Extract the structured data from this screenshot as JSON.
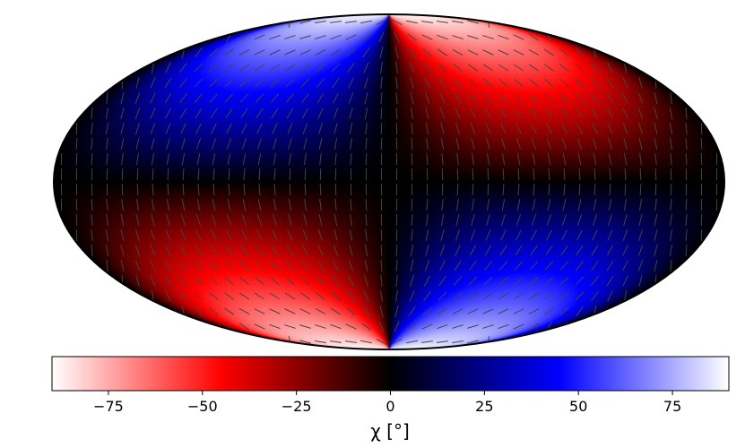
{
  "colorbar": {
    "min": -90,
    "max": 90,
    "ticks": [
      "−75",
      "−50",
      "−25",
      "0",
      "25",
      "50",
      "75"
    ],
    "tick_values": [
      -75,
      -50,
      -25,
      0,
      25,
      50,
      75
    ],
    "label": "χ [°]",
    "colors": {
      "neg_end": "#ffffff",
      "neg_mid": "#ff0000",
      "zero": "#000000",
      "pos_mid": "#0000ff",
      "pos_end": "#ffffff"
    }
  },
  "map": {
    "projection": "mollweide",
    "quantity": "polarization angle chi (degrees)",
    "segment_color": "#444444"
  }
}
